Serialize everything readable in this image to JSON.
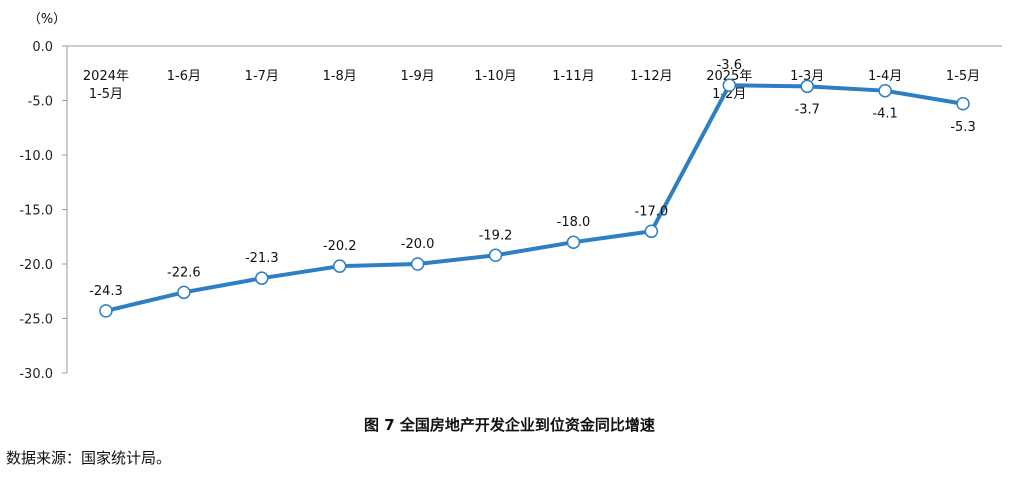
{
  "chart_data": {
    "type": "line",
    "title": "图 7 全国房地产开发企业到位资金同比增速",
    "unit_label": "（%）",
    "categories": [
      [
        "2024年",
        "1-5月"
      ],
      [
        "1-6月"
      ],
      [
        "1-7月"
      ],
      [
        "1-8月"
      ],
      [
        "1-9月"
      ],
      [
        "1-10月"
      ],
      [
        "1-11月"
      ],
      [
        "1-12月"
      ],
      [
        "2025年",
        "1-2月"
      ],
      [
        "1-3月"
      ],
      [
        "1-4月"
      ],
      [
        "1-5月"
      ]
    ],
    "values": [
      -24.3,
      -22.6,
      -21.3,
      -20.2,
      -20.0,
      -19.2,
      -18.0,
      -17.0,
      -3.6,
      -3.7,
      -4.1,
      -5.3
    ],
    "data_labels": [
      "-24.3",
      "-22.6",
      "-21.3",
      "-20.2",
      "-20.0",
      "-19.2",
      "-18.0",
      "-17.0",
      "-3.6",
      "-3.7",
      "-4.1",
      "-5.3"
    ],
    "y_ticks": [
      "0.0",
      "-5.0",
      "-10.0",
      "-15.0",
      "-20.0",
      "-25.0",
      "-30.0"
    ],
    "ylim": [
      -30,
      0
    ],
    "line_color": "#2e7fc1",
    "marker_fill": "#ffffff",
    "grid": false
  },
  "source_note": "数据来源：国家统计局。"
}
